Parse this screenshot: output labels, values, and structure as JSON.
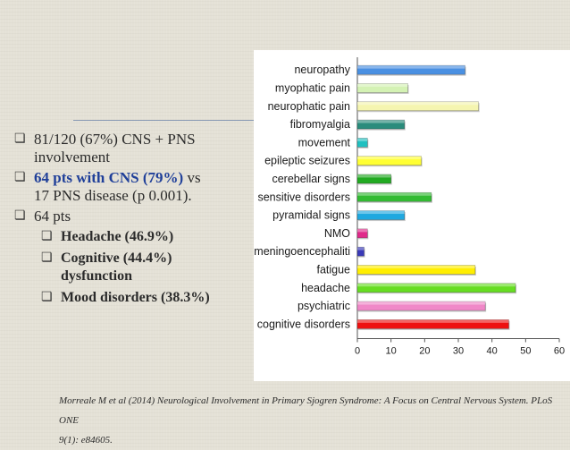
{
  "bullets": {
    "item1": {
      "glyph": "❏",
      "line1": "81/120 (67%) CNS + PNS",
      "line2": "involvement"
    },
    "item2": {
      "glyph": "❏",
      "highlight": "64 pts with CNS (79%)",
      "rest1": " vs",
      "line2": "17 PNS disease (p 0.001)."
    },
    "item3": {
      "glyph": "❏",
      "text": "64 pts"
    },
    "sub": [
      {
        "glyph": "❏",
        "line1": "Headache (46.9%)"
      },
      {
        "glyph": "❏",
        "line1": "Cognitive (44.4%)",
        "line2": "dysfunction"
      },
      {
        "glyph": "❏",
        "line1": "Mood disorders (38.3%)"
      }
    ]
  },
  "citation": {
    "line1": "Morreale M et al (2014) Neurological Involvement in Primary Sjogren Syndrome: A Focus on Central Nervous System. PLoS ONE",
    "line2": "9(1): e84605."
  },
  "chart_data": {
    "type": "bar",
    "orientation": "horizontal",
    "categories": [
      "neuropathy",
      "myophatic pain",
      "neurophatic pain",
      "fibromyalgia",
      "movement",
      "epileptic seizures",
      "cerebellar signs",
      "sensitive disorders",
      "pyramidal signs",
      "NMO",
      "meningoencephaliti",
      "fatigue",
      "headache",
      "psychiatric",
      "cognitive disorders"
    ],
    "values": [
      32,
      15,
      36,
      14,
      3,
      19,
      10,
      22,
      14,
      3,
      2,
      35,
      47,
      38,
      45
    ],
    "colors": [
      "#4a90e2",
      "#d4f2b4",
      "#f5f5b0",
      "#2a8c7c",
      "#20c0c0",
      "#ffff33",
      "#22aa22",
      "#33bb33",
      "#1fa8e0",
      "#e02a8a",
      "#3a3ab8",
      "#ffee00",
      "#66dd22",
      "#f088c8",
      "#ee1111"
    ],
    "xlim": [
      0,
      60
    ],
    "xticks": [
      0,
      10,
      20,
      30,
      40,
      50,
      60
    ],
    "title": "",
    "xlabel": "",
    "ylabel": "",
    "grid": false
  }
}
